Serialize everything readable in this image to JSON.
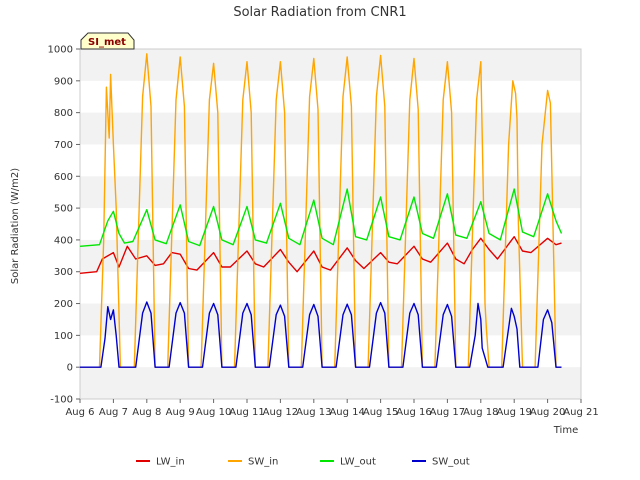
{
  "chart_data": {
    "type": "line",
    "title": "Solar Radiation from CNR1",
    "xlabel": "Time",
    "ylabel": "Solar Radiation (W/m2)",
    "badge": "SI_met",
    "ylim": [
      -100,
      1000
    ],
    "yticks": [
      -100,
      0,
      100,
      200,
      300,
      400,
      500,
      600,
      700,
      800,
      900,
      1000
    ],
    "xlim": [
      "2024-08-06",
      "2024-08-21"
    ],
    "x_tick_labels": [
      "Aug 6",
      "Aug 7",
      "Aug 8",
      "Aug 9",
      "Aug 10",
      "Aug 11",
      "Aug 12",
      "Aug 13",
      "Aug 14",
      "Aug 15",
      "Aug 16",
      "Aug 17",
      "Aug 18",
      "Aug 19",
      "Aug 20",
      "Aug 21"
    ],
    "grid": "horizontal bands",
    "legend_position": "bottom",
    "series": [
      {
        "name": "LW_in",
        "color": "#e00000",
        "points": [
          [
            "2024-08-06 00:00",
            295
          ],
          [
            "2024-08-06 12:00",
            300
          ],
          [
            "2024-08-06 16:00",
            340
          ],
          [
            "2024-08-07 00:00",
            360
          ],
          [
            "2024-08-07 04:00",
            315
          ],
          [
            "2024-08-07 10:00",
            380
          ],
          [
            "2024-08-07 16:00",
            340
          ],
          [
            "2024-08-08 00:00",
            350
          ],
          [
            "2024-08-08 06:00",
            320
          ],
          [
            "2024-08-08 12:00",
            325
          ],
          [
            "2024-08-08 18:00",
            360
          ],
          [
            "2024-08-09 00:00",
            355
          ],
          [
            "2024-08-09 06:00",
            310
          ],
          [
            "2024-08-09 12:00",
            305
          ],
          [
            "2024-08-10 00:00",
            360
          ],
          [
            "2024-08-10 06:00",
            315
          ],
          [
            "2024-08-10 12:00",
            315
          ],
          [
            "2024-08-11 00:00",
            365
          ],
          [
            "2024-08-11 06:00",
            325
          ],
          [
            "2024-08-11 12:00",
            315
          ],
          [
            "2024-08-12 00:00",
            370
          ],
          [
            "2024-08-12 06:00",
            330
          ],
          [
            "2024-08-12 12:00",
            300
          ],
          [
            "2024-08-13 00:00",
            365
          ],
          [
            "2024-08-13 06:00",
            315
          ],
          [
            "2024-08-13 12:00",
            305
          ],
          [
            "2024-08-14 00:00",
            375
          ],
          [
            "2024-08-14 06:00",
            335
          ],
          [
            "2024-08-14 12:00",
            310
          ],
          [
            "2024-08-15 00:00",
            360
          ],
          [
            "2024-08-15 06:00",
            330
          ],
          [
            "2024-08-15 12:00",
            325
          ],
          [
            "2024-08-16 00:00",
            380
          ],
          [
            "2024-08-16 06:00",
            340
          ],
          [
            "2024-08-16 12:00",
            330
          ],
          [
            "2024-08-17 00:00",
            390
          ],
          [
            "2024-08-17 06:00",
            340
          ],
          [
            "2024-08-17 12:00",
            325
          ],
          [
            "2024-08-17 18:00",
            370
          ],
          [
            "2024-08-18 00:00",
            405
          ],
          [
            "2024-08-18 06:00",
            370
          ],
          [
            "2024-08-18 12:00",
            340
          ],
          [
            "2024-08-19 00:00",
            410
          ],
          [
            "2024-08-19 06:00",
            365
          ],
          [
            "2024-08-19 12:00",
            360
          ],
          [
            "2024-08-20 00:00",
            405
          ],
          [
            "2024-08-20 06:00",
            385
          ],
          [
            "2024-08-20 10:00",
            390
          ]
        ]
      },
      {
        "name": "SW_in",
        "color": "#ffa500",
        "points": [
          [
            "2024-08-06 00:00",
            0
          ],
          [
            "2024-08-06 14:00",
            0
          ],
          [
            "2024-08-06 17:00",
            400
          ],
          [
            "2024-08-06 19:00",
            880
          ],
          [
            "2024-08-06 21:00",
            720
          ],
          [
            "2024-08-06 22:00",
            920
          ],
          [
            "2024-08-07 00:00",
            700
          ],
          [
            "2024-08-07 02:00",
            500
          ],
          [
            "2024-08-07 05:00",
            0
          ],
          [
            "2024-08-07 15:00",
            0
          ],
          [
            "2024-08-07 21:00",
            850
          ],
          [
            "2024-08-08 00:00",
            985
          ],
          [
            "2024-08-08 03:00",
            820
          ],
          [
            "2024-08-08 06:00",
            0
          ],
          [
            "2024-08-08 15:00",
            0
          ],
          [
            "2024-08-08 21:00",
            840
          ],
          [
            "2024-08-09 00:00",
            975
          ],
          [
            "2024-08-09 03:00",
            820
          ],
          [
            "2024-08-09 06:00",
            0
          ],
          [
            "2024-08-09 15:00",
            0
          ],
          [
            "2024-08-09 21:00",
            840
          ],
          [
            "2024-08-10 00:00",
            955
          ],
          [
            "2024-08-10 03:00",
            800
          ],
          [
            "2024-08-10 06:00",
            0
          ],
          [
            "2024-08-10 15:00",
            0
          ],
          [
            "2024-08-10 21:00",
            840
          ],
          [
            "2024-08-11 00:00",
            960
          ],
          [
            "2024-08-11 03:00",
            800
          ],
          [
            "2024-08-11 06:00",
            0
          ],
          [
            "2024-08-11 15:00",
            0
          ],
          [
            "2024-08-11 21:00",
            840
          ],
          [
            "2024-08-12 00:00",
            960
          ],
          [
            "2024-08-12 03:00",
            800
          ],
          [
            "2024-08-12 06:00",
            0
          ],
          [
            "2024-08-12 15:00",
            0
          ],
          [
            "2024-08-12 21:00",
            850
          ],
          [
            "2024-08-13 00:00",
            970
          ],
          [
            "2024-08-13 03:00",
            810
          ],
          [
            "2024-08-13 06:00",
            0
          ],
          [
            "2024-08-13 15:00",
            0
          ],
          [
            "2024-08-13 21:00",
            850
          ],
          [
            "2024-08-14 00:00",
            975
          ],
          [
            "2024-08-14 03:00",
            820
          ],
          [
            "2024-08-14 06:00",
            0
          ],
          [
            "2024-08-14 15:00",
            0
          ],
          [
            "2024-08-14 21:00",
            850
          ],
          [
            "2024-08-15 00:00",
            980
          ],
          [
            "2024-08-15 03:00",
            820
          ],
          [
            "2024-08-15 06:00",
            0
          ],
          [
            "2024-08-15 15:00",
            0
          ],
          [
            "2024-08-15 21:00",
            840
          ],
          [
            "2024-08-16 00:00",
            970
          ],
          [
            "2024-08-16 03:00",
            810
          ],
          [
            "2024-08-16 06:00",
            0
          ],
          [
            "2024-08-16 15:00",
            0
          ],
          [
            "2024-08-16 21:00",
            840
          ],
          [
            "2024-08-17 00:00",
            960
          ],
          [
            "2024-08-17 03:00",
            800
          ],
          [
            "2024-08-17 06:00",
            0
          ],
          [
            "2024-08-17 15:00",
            0
          ],
          [
            "2024-08-17 21:00",
            840
          ],
          [
            "2024-08-18 00:00",
            960
          ],
          [
            "2024-08-18 02:00",
            500
          ],
          [
            "2024-08-18 03:00",
            200
          ],
          [
            "2024-08-18 04:00",
            120
          ],
          [
            "2024-08-18 06:00",
            0
          ],
          [
            "2024-08-18 15:00",
            0
          ],
          [
            "2024-08-18 20:00",
            700
          ],
          [
            "2024-08-18 23:00",
            900
          ],
          [
            "2024-08-19 01:00",
            860
          ],
          [
            "2024-08-19 02:00",
            780
          ],
          [
            "2024-08-19 03:00",
            450
          ],
          [
            "2024-08-19 06:00",
            0
          ],
          [
            "2024-08-19 15:00",
            0
          ],
          [
            "2024-08-19 20:00",
            700
          ],
          [
            "2024-08-20 00:00",
            870
          ],
          [
            "2024-08-20 02:00",
            830
          ],
          [
            "2024-08-20 06:00",
            0
          ],
          [
            "2024-08-20 10:00",
            0
          ]
        ]
      },
      {
        "name": "LW_out",
        "color": "#00e600",
        "points": [
          [
            "2024-08-06 00:00",
            380
          ],
          [
            "2024-08-06 14:00",
            385
          ],
          [
            "2024-08-06 20:00",
            460
          ],
          [
            "2024-08-07 00:00",
            490
          ],
          [
            "2024-08-07 04:00",
            420
          ],
          [
            "2024-08-07 08:00",
            390
          ],
          [
            "2024-08-07 14:00",
            395
          ],
          [
            "2024-08-08 00:00",
            495
          ],
          [
            "2024-08-08 06:00",
            400
          ],
          [
            "2024-08-08 14:00",
            388
          ],
          [
            "2024-08-09 00:00",
            510
          ],
          [
            "2024-08-09 06:00",
            395
          ],
          [
            "2024-08-09 14:00",
            382
          ],
          [
            "2024-08-10 00:00",
            505
          ],
          [
            "2024-08-10 06:00",
            400
          ],
          [
            "2024-08-10 14:00",
            385
          ],
          [
            "2024-08-11 00:00",
            505
          ],
          [
            "2024-08-11 06:00",
            400
          ],
          [
            "2024-08-11 14:00",
            390
          ],
          [
            "2024-08-12 00:00",
            515
          ],
          [
            "2024-08-12 06:00",
            405
          ],
          [
            "2024-08-12 14:00",
            385
          ],
          [
            "2024-08-13 00:00",
            525
          ],
          [
            "2024-08-13 06:00",
            405
          ],
          [
            "2024-08-13 14:00",
            385
          ],
          [
            "2024-08-14 00:00",
            560
          ],
          [
            "2024-08-14 06:00",
            410
          ],
          [
            "2024-08-14 14:00",
            400
          ],
          [
            "2024-08-15 00:00",
            535
          ],
          [
            "2024-08-15 06:00",
            410
          ],
          [
            "2024-08-15 14:00",
            400
          ],
          [
            "2024-08-16 00:00",
            535
          ],
          [
            "2024-08-16 06:00",
            420
          ],
          [
            "2024-08-16 14:00",
            405
          ],
          [
            "2024-08-17 00:00",
            545
          ],
          [
            "2024-08-17 06:00",
            415
          ],
          [
            "2024-08-17 14:00",
            405
          ],
          [
            "2024-08-18 00:00",
            520
          ],
          [
            "2024-08-18 06:00",
            420
          ],
          [
            "2024-08-18 14:00",
            400
          ],
          [
            "2024-08-19 00:00",
            560
          ],
          [
            "2024-08-19 06:00",
            425
          ],
          [
            "2024-08-19 14:00",
            410
          ],
          [
            "2024-08-20 00:00",
            545
          ],
          [
            "2024-08-20 06:00",
            460
          ],
          [
            "2024-08-20 10:00",
            420
          ]
        ]
      },
      {
        "name": "SW_out",
        "color": "#0000cc",
        "points": [
          [
            "2024-08-06 00:00",
            0
          ],
          [
            "2024-08-06 15:00",
            0
          ],
          [
            "2024-08-06 18:00",
            90
          ],
          [
            "2024-08-06 20:00",
            190
          ],
          [
            "2024-08-06 22:00",
            150
          ],
          [
            "2024-08-07 00:00",
            180
          ],
          [
            "2024-08-07 02:00",
            100
          ],
          [
            "2024-08-07 04:00",
            0
          ],
          [
            "2024-08-07 16:00",
            0
          ],
          [
            "2024-08-07 21:00",
            170
          ],
          [
            "2024-08-08 00:00",
            205
          ],
          [
            "2024-08-08 03:00",
            170
          ],
          [
            "2024-08-08 06:00",
            0
          ],
          [
            "2024-08-08 16:00",
            0
          ],
          [
            "2024-08-08 21:00",
            170
          ],
          [
            "2024-08-09 00:00",
            203
          ],
          [
            "2024-08-09 03:00",
            170
          ],
          [
            "2024-08-09 06:00",
            0
          ],
          [
            "2024-08-09 16:00",
            0
          ],
          [
            "2024-08-09 21:00",
            170
          ],
          [
            "2024-08-10 00:00",
            200
          ],
          [
            "2024-08-10 03:00",
            165
          ],
          [
            "2024-08-10 06:00",
            0
          ],
          [
            "2024-08-10 16:00",
            0
          ],
          [
            "2024-08-10 21:00",
            170
          ],
          [
            "2024-08-11 00:00",
            200
          ],
          [
            "2024-08-11 03:00",
            165
          ],
          [
            "2024-08-11 06:00",
            0
          ],
          [
            "2024-08-11 16:00",
            0
          ],
          [
            "2024-08-11 21:00",
            165
          ],
          [
            "2024-08-12 00:00",
            195
          ],
          [
            "2024-08-12 03:00",
            160
          ],
          [
            "2024-08-12 06:00",
            0
          ],
          [
            "2024-08-12 16:00",
            0
          ],
          [
            "2024-08-12 21:00",
            165
          ],
          [
            "2024-08-13 00:00",
            197
          ],
          [
            "2024-08-13 03:00",
            160
          ],
          [
            "2024-08-13 06:00",
            0
          ],
          [
            "2024-08-13 16:00",
            0
          ],
          [
            "2024-08-13 21:00",
            165
          ],
          [
            "2024-08-14 00:00",
            198
          ],
          [
            "2024-08-14 03:00",
            165
          ],
          [
            "2024-08-14 06:00",
            0
          ],
          [
            "2024-08-14 16:00",
            0
          ],
          [
            "2024-08-14 21:00",
            170
          ],
          [
            "2024-08-15 00:00",
            203
          ],
          [
            "2024-08-15 03:00",
            170
          ],
          [
            "2024-08-15 06:00",
            0
          ],
          [
            "2024-08-15 16:00",
            0
          ],
          [
            "2024-08-15 21:00",
            170
          ],
          [
            "2024-08-16 00:00",
            200
          ],
          [
            "2024-08-16 03:00",
            165
          ],
          [
            "2024-08-16 06:00",
            0
          ],
          [
            "2024-08-16 16:00",
            0
          ],
          [
            "2024-08-16 21:00",
            165
          ],
          [
            "2024-08-17 00:00",
            197
          ],
          [
            "2024-08-17 03:00",
            160
          ],
          [
            "2024-08-17 06:00",
            0
          ],
          [
            "2024-08-17 16:00",
            0
          ],
          [
            "2024-08-17 20:00",
            100
          ],
          [
            "2024-08-17 22:00",
            200
          ],
          [
            "2024-08-18 00:00",
            150
          ],
          [
            "2024-08-18 01:00",
            60
          ],
          [
            "2024-08-18 03:00",
            30
          ],
          [
            "2024-08-18 05:00",
            0
          ],
          [
            "2024-08-18 16:00",
            0
          ],
          [
            "2024-08-18 22:00",
            185
          ],
          [
            "2024-08-19 00:00",
            160
          ],
          [
            "2024-08-19 02:00",
            120
          ],
          [
            "2024-08-19 04:00",
            0
          ],
          [
            "2024-08-19 17:00",
            0
          ],
          [
            "2024-08-19 21:00",
            150
          ],
          [
            "2024-08-20 00:00",
            180
          ],
          [
            "2024-08-20 03:00",
            140
          ],
          [
            "2024-08-20 06:00",
            0
          ],
          [
            "2024-08-20 10:00",
            0
          ]
        ]
      }
    ]
  }
}
